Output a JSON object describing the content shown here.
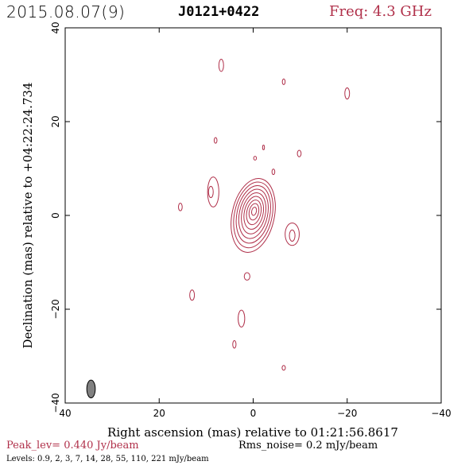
{
  "header": {
    "date": "2015.08.07(9)",
    "source": "J0121+0422",
    "freq": "Freq: 4.3 GHz"
  },
  "axes": {
    "xlabel": "Right ascension (mas) relative to 01:21:56.8617",
    "ylabel": "Declination (mas) relative to +04:22:24.734",
    "xticks": [
      "40",
      "20",
      "0",
      "−20",
      "−40"
    ],
    "yticks": [
      "−40",
      "−20",
      "0",
      "20",
      "40"
    ],
    "xlim": [
      40,
      -40
    ],
    "ylim": [
      -40,
      40
    ]
  },
  "footer": {
    "peak": "Peak_lev=  0.440 Jy/beam",
    "rms": "Rms_noise=   0.2 mJy/beam",
    "levels": "Levels: 0.9,    2,    3,    7,   14,   28,   55,  110,  221 mJy/beam"
  },
  "colors": {
    "contour": "#b0304a",
    "beam": "#808080",
    "peak_text": "#b0304a"
  },
  "beam": {
    "ra": 34.5,
    "dec": -37,
    "major_mas": 3.8,
    "minor_mas": 1.8
  },
  "core": {
    "ra": 0,
    "dec": 0,
    "n_levels": 9,
    "outer_rx_mas": 4.5,
    "outer_ry_mas": 8
  },
  "blobs": [
    {
      "name": "blob-1",
      "ra": 6.8,
      "dec": 32,
      "rx": 0.5,
      "ry": 1.3
    },
    {
      "name": "blob-2",
      "ra": -6.5,
      "dec": 28.5,
      "rx": 0.3,
      "ry": 0.6
    },
    {
      "name": "blob-3",
      "ra": -20,
      "dec": 26,
      "rx": 0.5,
      "ry": 1.2
    },
    {
      "name": "blob-4",
      "ra": 8,
      "dec": 16,
      "rx": 0.3,
      "ry": 0.6
    },
    {
      "name": "blob-5",
      "ra": -2.2,
      "dec": 14.5,
      "rx": 0.2,
      "ry": 0.5
    },
    {
      "name": "blob-6",
      "ra": -9.8,
      "dec": 13.2,
      "rx": 0.4,
      "ry": 0.7
    },
    {
      "name": "blob-7",
      "ra": -0.4,
      "dec": 12.2,
      "rx": 0.3,
      "ry": 0.4
    },
    {
      "name": "blob-8",
      "ra": -4.3,
      "dec": 9.3,
      "rx": 0.3,
      "ry": 0.6
    },
    {
      "name": "blob-9",
      "ra": 8.5,
      "dec": 5,
      "rx": 1.2,
      "ry": 3.2
    },
    {
      "name": "blob-10",
      "ra": 9,
      "dec": 5,
      "rx": 0.5,
      "ry": 1.2
    },
    {
      "name": "blob-11",
      "ra": 15.5,
      "dec": 1.8,
      "rx": 0.4,
      "ry": 0.8
    },
    {
      "name": "blob-12",
      "ra": -8.3,
      "dec": -4,
      "rx": 1.5,
      "ry": 2.4
    },
    {
      "name": "blob-13",
      "ra": -8.3,
      "dec": -4.3,
      "rx": 0.6,
      "ry": 1.2
    },
    {
      "name": "blob-14",
      "ra": 1.3,
      "dec": -13,
      "rx": 0.6,
      "ry": 0.8
    },
    {
      "name": "blob-15",
      "ra": 13,
      "dec": -17,
      "rx": 0.5,
      "ry": 1.1
    },
    {
      "name": "blob-16",
      "ra": 2.5,
      "dec": -22,
      "rx": 0.7,
      "ry": 1.8
    },
    {
      "name": "blob-17",
      "ra": 4,
      "dec": -27.5,
      "rx": 0.35,
      "ry": 0.8
    },
    {
      "name": "blob-18",
      "ra": -6.5,
      "dec": -32.5,
      "rx": 0.35,
      "ry": 0.5
    }
  ]
}
